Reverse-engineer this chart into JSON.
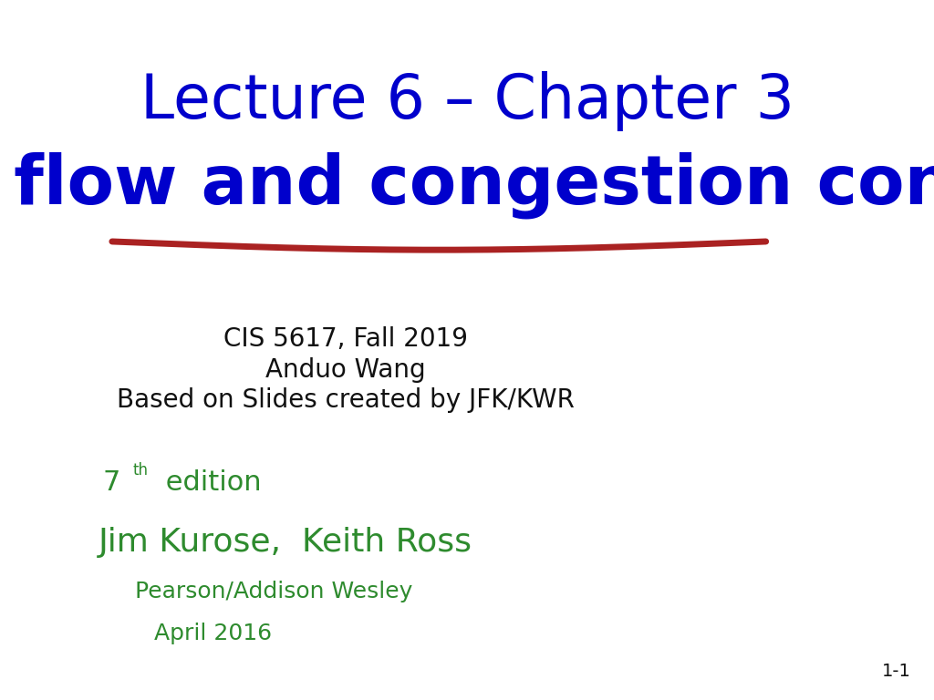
{
  "title_line1": "Lecture 6 – Chapter 3",
  "title_line2": "TCP flow and congestion control",
  "title_color": "#0000CC",
  "underline_color": "#AA2222",
  "info_line1": "CIS 5617, Fall 2019",
  "info_line2": "Anduo Wang",
  "info_line3": "Based on Slides created by JFK/KWR",
  "info_color": "#111111",
  "edition_num": "7",
  "edition_super": "th",
  "edition_text": " edition",
  "author_line": "Jim Kurose,  Keith Ross",
  "publisher_line": "Pearson/Addison Wesley",
  "date_line": "April 2016",
  "green_color": "#2e8b2e",
  "slide_number": "1-1",
  "background_color": "#ffffff",
  "title1_fontsize": 48,
  "title2_fontsize": 54,
  "info_fontsize": 20,
  "edition_fontsize": 22,
  "author_fontsize": 26,
  "small_fontsize": 18
}
